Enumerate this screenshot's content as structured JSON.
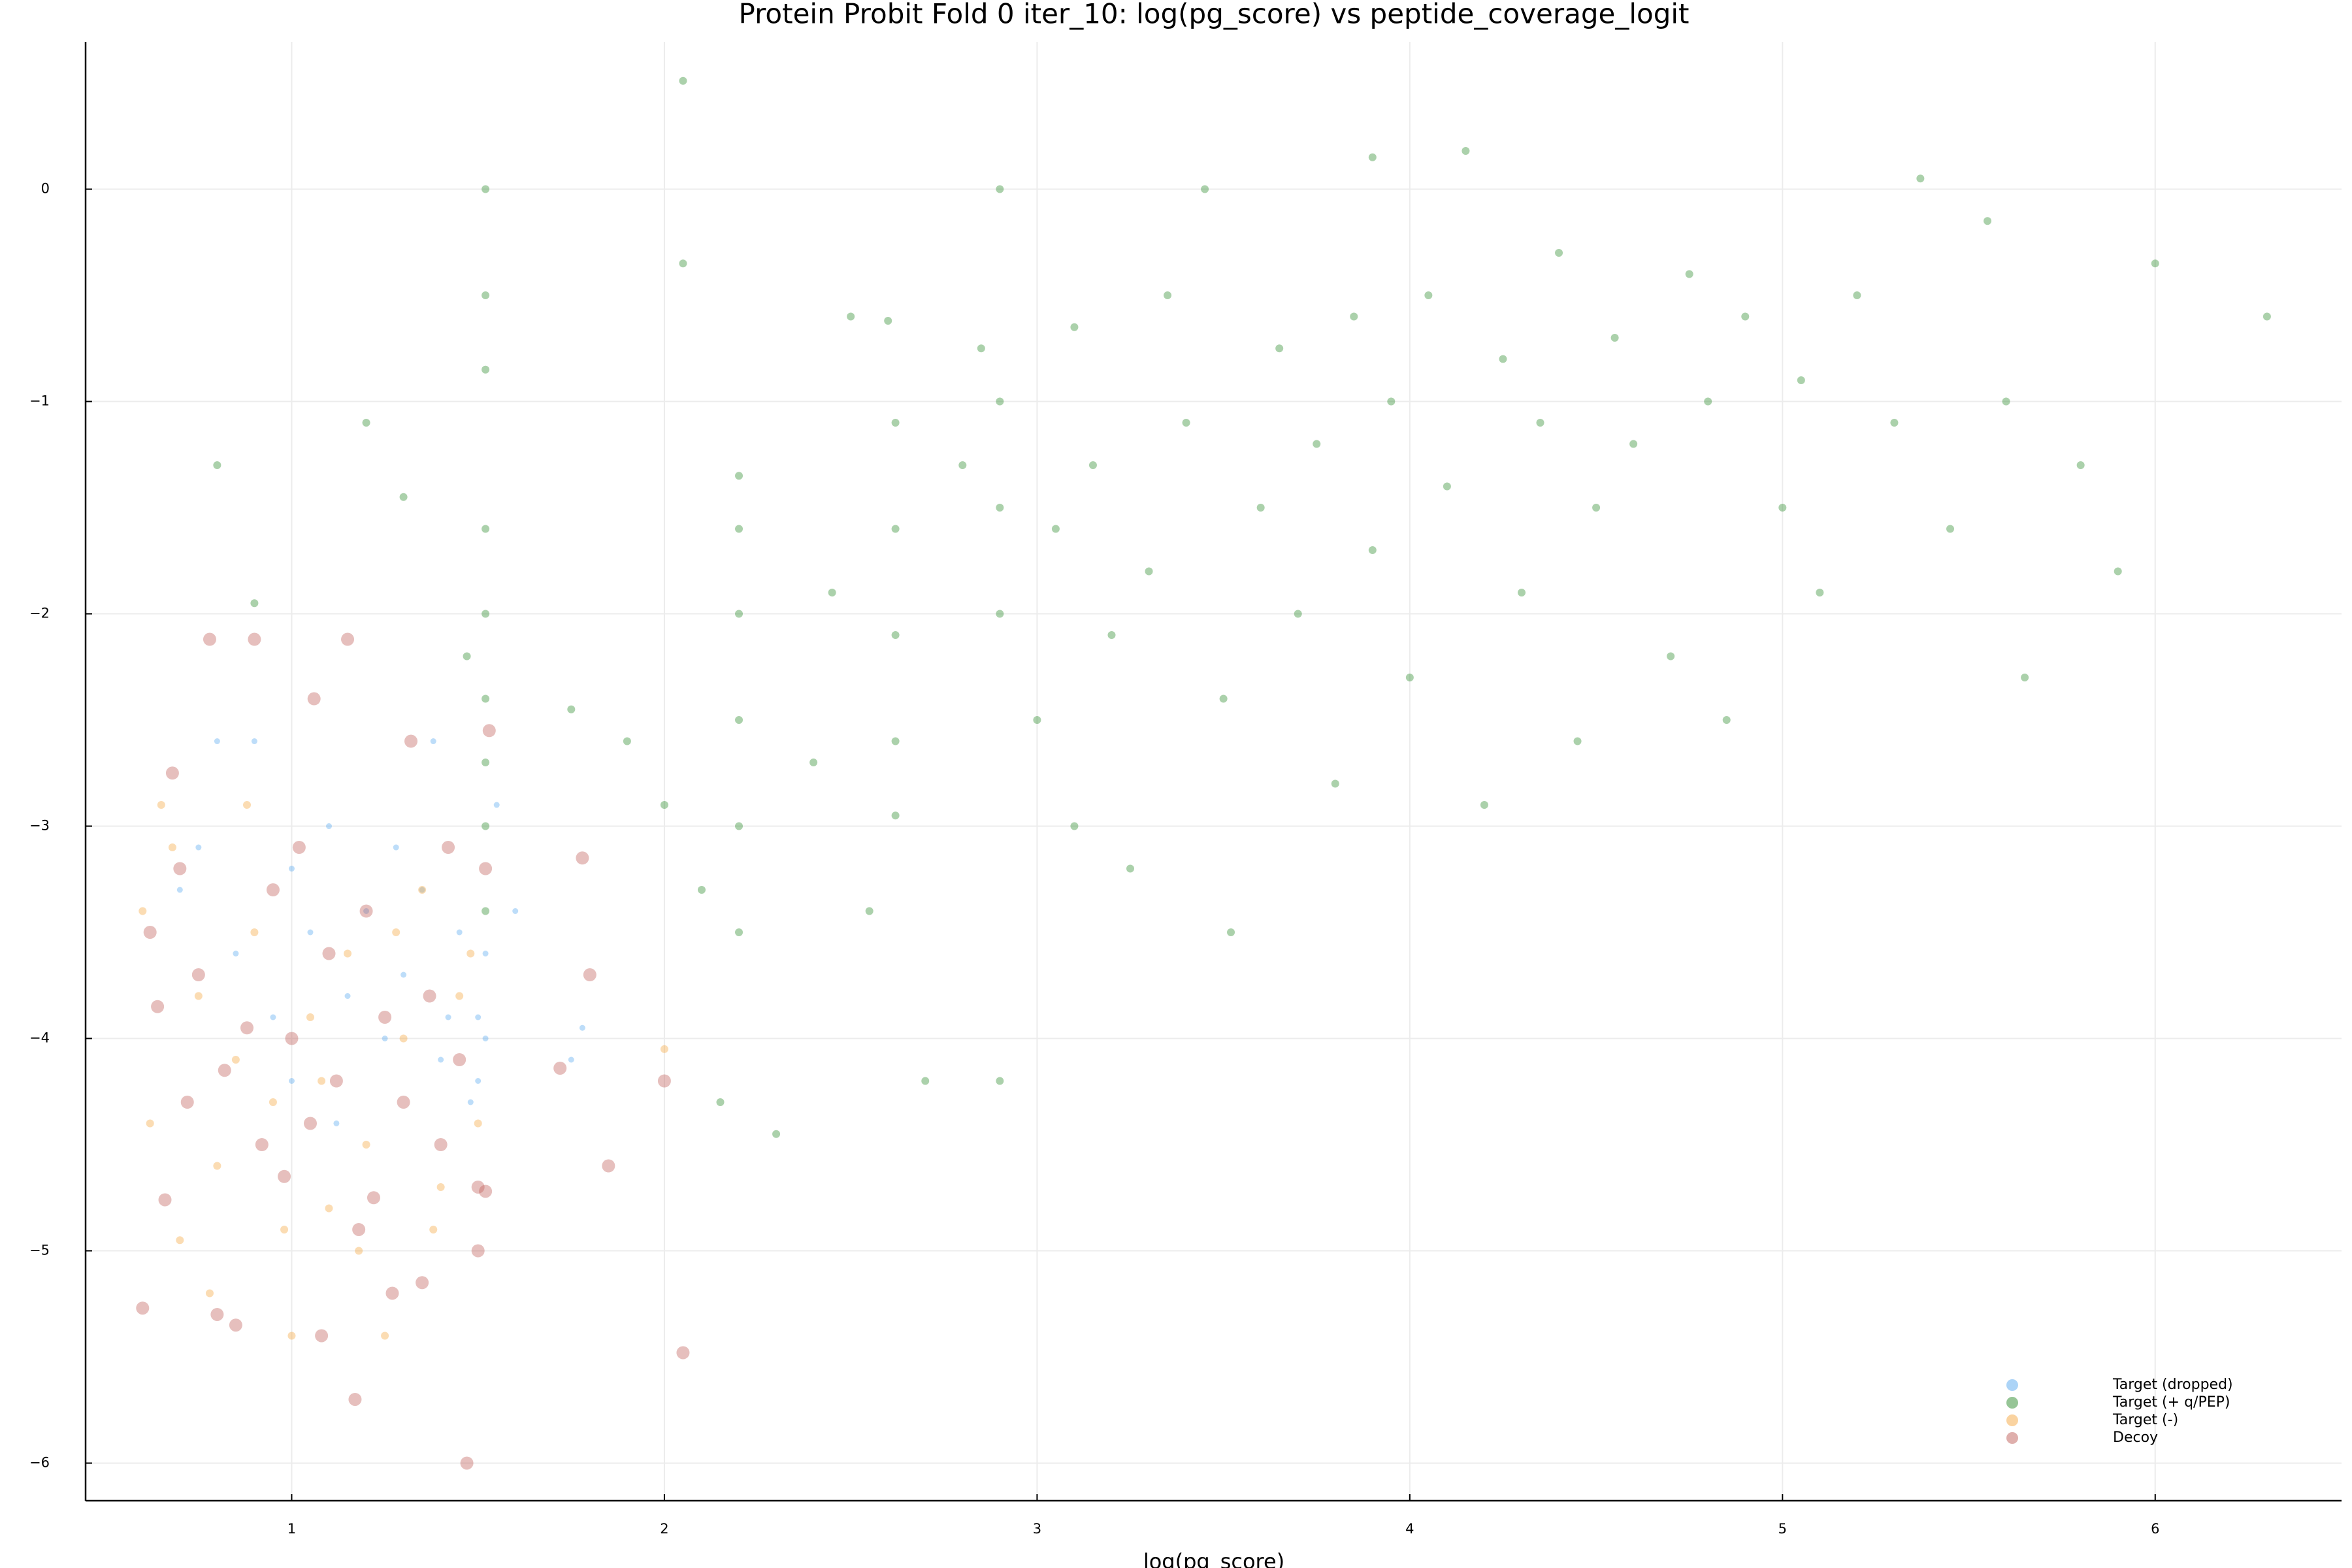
{
  "chart_data": {
    "type": "scatter",
    "title": "Protein Probit Fold 0 iter_10: log(pg_score) vs peptide_coverage_logit",
    "x_label": "log(pg_score)",
    "xlim": [
      0.447,
      6.5
    ],
    "ylim": [
      -6.177,
      0.694
    ],
    "xticks": [
      1,
      2,
      3,
      4,
      5,
      6
    ],
    "yticks": [
      0,
      {
        "value": -1,
        "label": "−1"
      },
      {
        "value": -2,
        "label": "−2"
      },
      {
        "value": -3,
        "label": "−3"
      },
      {
        "value": -4,
        "label": "−4"
      },
      {
        "value": -5,
        "label": "−5"
      },
      {
        "value": -6,
        "label": "−6"
      }
    ],
    "grid": true,
    "legend_position": "bottom right",
    "opacity": 0.4,
    "series": [
      {
        "name": "Target (dropped)",
        "color": "#5aa9f0",
        "x": [
          0.8,
          0.9,
          0.75,
          0.85,
          1.0,
          1.05,
          1.1,
          1.15,
          1.2,
          1.25,
          1.3,
          1.35,
          1.4,
          1.45,
          1.5,
          1.52,
          1.52,
          1.48,
          1.38,
          1.55,
          1.6,
          1.75,
          1.78,
          1.0,
          0.95,
          1.12,
          1.28,
          1.42,
          0.7,
          1.5
        ],
        "y": [
          -2.6,
          -2.6,
          -3.1,
          -3.6,
          -3.2,
          -3.5,
          -3.0,
          -3.8,
          -3.4,
          -4.0,
          -3.7,
          -3.3,
          -4.1,
          -3.5,
          -3.9,
          -4.0,
          -3.6,
          -4.3,
          -2.6,
          -2.9,
          -3.4,
          -4.1,
          -3.95,
          -4.2,
          -3.9,
          -4.4,
          -3.1,
          -3.9,
          -3.3,
          -4.2
        ]
      },
      {
        "name": "Target (+ q/PEP)",
        "color": "#2e8b2e",
        "x": [
          1.52,
          1.52,
          1.52,
          1.52,
          1.52,
          1.52,
          1.52,
          1.52,
          1.52,
          1.47,
          1.2,
          0.9,
          0.8,
          1.3,
          1.75,
          1.9,
          2.0,
          2.05,
          2.1,
          2.2,
          2.2,
          2.2,
          2.2,
          2.2,
          2.2,
          2.15,
          2.3,
          2.4,
          2.45,
          2.5,
          2.55,
          2.6,
          2.62,
          2.62,
          2.62,
          2.62,
          2.62,
          2.7,
          2.8,
          2.85,
          2.9,
          2.9,
          2.9,
          2.9,
          2.9,
          3.0,
          3.05,
          3.1,
          3.1,
          3.15,
          3.2,
          3.25,
          3.3,
          3.35,
          3.4,
          3.45,
          3.5,
          3.52,
          3.6,
          3.65,
          3.7,
          3.75,
          3.8,
          3.85,
          3.9,
          3.9,
          3.95,
          4.0,
          4.05,
          4.1,
          4.15,
          4.2,
          4.25,
          4.3,
          4.35,
          4.4,
          4.45,
          4.5,
          4.55,
          4.6,
          4.7,
          4.75,
          4.8,
          4.85,
          4.9,
          5.0,
          5.05,
          5.1,
          5.2,
          5.3,
          5.37,
          5.45,
          5.55,
          5.6,
          5.9,
          6.0,
          6.3,
          5.8,
          5.65,
          2.05
        ],
        "y": [
          0,
          -0.5,
          -0.85,
          -1.6,
          -2.0,
          -2.4,
          -2.7,
          -3.0,
          -3.4,
          -2.2,
          -1.1,
          -1.95,
          -1.3,
          -1.45,
          -2.45,
          -2.6,
          -2.9,
          -0.35,
          -3.3,
          -1.35,
          -1.6,
          -2.0,
          -2.5,
          -3.0,
          -3.5,
          -4.3,
          -4.45,
          -2.7,
          -1.9,
          -0.6,
          -3.4,
          -0.62,
          -1.1,
          -1.6,
          -2.1,
          -2.6,
          -2.95,
          -4.2,
          -1.3,
          -0.75,
          0,
          -1.0,
          -1.5,
          -2.0,
          -4.2,
          -2.5,
          -1.6,
          -0.65,
          -3.0,
          -1.3,
          -2.1,
          -3.2,
          -1.8,
          -0.5,
          -1.1,
          0,
          -2.4,
          -3.5,
          -1.5,
          -0.75,
          -2.0,
          -1.2,
          -2.8,
          -0.6,
          0.15,
          -1.7,
          -1.0,
          -2.3,
          -0.5,
          -1.4,
          0.18,
          -2.9,
          -0.8,
          -1.9,
          -1.1,
          -0.3,
          -2.6,
          -1.5,
          -0.7,
          -1.2,
          -2.2,
          -0.4,
          -1.0,
          -2.5,
          -0.6,
          -1.5,
          -0.9,
          -1.9,
          -0.5,
          -1.1,
          0.05,
          -1.6,
          -0.15,
          -1.0,
          -1.8,
          -0.35,
          -0.6,
          -1.3,
          -2.3,
          0.51
        ]
      },
      {
        "name": "Target (-)",
        "color": "#f5a742",
        "x": [
          0.6,
          0.62,
          0.65,
          0.7,
          0.75,
          0.8,
          0.85,
          0.9,
          0.95,
          1.0,
          1.05,
          1.1,
          1.15,
          1.2,
          1.25,
          1.3,
          1.35,
          1.4,
          1.45,
          1.5,
          0.68,
          0.78,
          0.88,
          0.98,
          1.08,
          1.18,
          1.28,
          1.38,
          1.48,
          2.0
        ],
        "y": [
          -3.4,
          -4.4,
          -2.9,
          -4.95,
          -3.8,
          -4.6,
          -4.1,
          -3.5,
          -4.3,
          -5.4,
          -3.9,
          -4.8,
          -3.6,
          -4.5,
          -5.4,
          -4.0,
          -3.3,
          -4.7,
          -3.8,
          -4.4,
          -3.1,
          -5.2,
          -2.9,
          -4.9,
          -4.2,
          -5.0,
          -3.5,
          -4.9,
          -3.6,
          -4.05
        ]
      },
      {
        "name": "Decoy",
        "color": "#c0605a",
        "x": [
          0.6,
          0.62,
          0.64,
          0.66,
          0.68,
          0.7,
          0.72,
          0.75,
          0.78,
          0.8,
          0.82,
          0.85,
          0.88,
          0.9,
          0.92,
          0.95,
          0.98,
          1.0,
          1.02,
          1.05,
          1.06,
          1.08,
          1.1,
          1.12,
          1.15,
          1.17,
          1.18,
          1.2,
          1.22,
          1.25,
          1.27,
          1.3,
          1.32,
          1.35,
          1.37,
          1.4,
          1.42,
          1.45,
          1.47,
          1.5,
          1.52,
          1.53,
          1.52,
          1.5,
          1.72,
          1.78,
          1.8,
          1.85,
          2.0,
          2.05
        ],
        "y": [
          -5.27,
          -3.5,
          -3.85,
          -4.76,
          -2.75,
          -3.2,
          -4.3,
          -3.7,
          -2.12,
          -5.3,
          -4.15,
          -5.35,
          -3.95,
          -2.12,
          -4.5,
          -3.3,
          -4.65,
          -4.0,
          -3.1,
          -4.4,
          -2.4,
          -5.4,
          -3.6,
          -4.2,
          -2.12,
          -5.7,
          -4.9,
          -3.4,
          -4.75,
          -3.9,
          -5.2,
          -4.3,
          -2.6,
          -5.15,
          -3.8,
          -4.5,
          -3.1,
          -4.1,
          -6.0,
          -4.7,
          -3.2,
          -2.55,
          -4.72,
          -5.0,
          -4.14,
          -3.15,
          -3.7,
          -4.6,
          -4.2,
          -5.48
        ]
      }
    ]
  }
}
